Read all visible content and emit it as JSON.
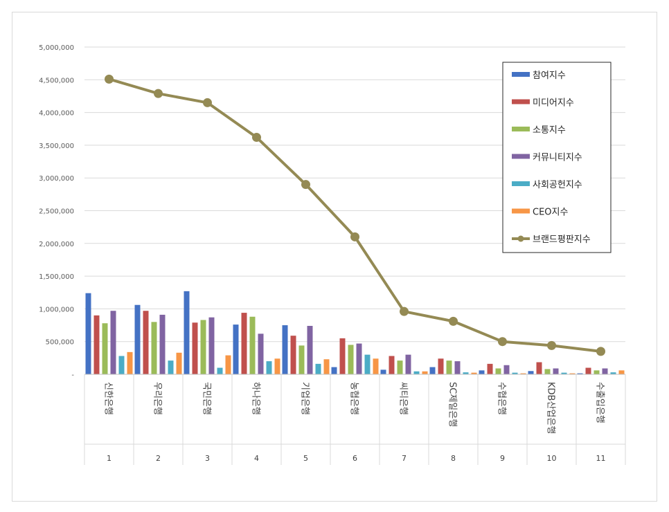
{
  "chart_data": {
    "type": "bar",
    "categories": [
      "신한은행",
      "우리은행",
      "국민은행",
      "하나은행",
      "기업은행",
      "농협은행",
      "씨티은행",
      "SC제일은행",
      "수협은행",
      "KDB산업은행",
      "수출입은행"
    ],
    "ranks": [
      "1",
      "2",
      "3",
      "4",
      "5",
      "6",
      "7",
      "8",
      "9",
      "10",
      "11"
    ],
    "ylim": [
      0,
      5000000
    ],
    "yticks": [
      0,
      500000,
      1000000,
      1500000,
      2000000,
      2500000,
      3000000,
      3500000,
      4000000,
      4500000,
      5000000
    ],
    "ytick_labels": [
      "-",
      "500,000",
      "1,000,000",
      "1,500,000",
      "2,000,000",
      "2,500,000",
      "3,000,000",
      "3,500,000",
      "4,000,000",
      "4,500,000",
      "5,000,000"
    ],
    "grid": true,
    "legend_position": "top-right",
    "series": [
      {
        "name": "참여지수",
        "kind": "bar",
        "color": "#4472C4",
        "values": [
          1240000,
          1060000,
          1270000,
          760000,
          750000,
          110000,
          70000,
          110000,
          60000,
          50000,
          15000
        ]
      },
      {
        "name": "미디어지수",
        "kind": "bar",
        "color": "#C0504D",
        "values": [
          900000,
          970000,
          790000,
          940000,
          590000,
          550000,
          280000,
          240000,
          160000,
          185000,
          100000
        ]
      },
      {
        "name": "소통지수",
        "kind": "bar",
        "color": "#9BBB59",
        "values": [
          780000,
          800000,
          830000,
          880000,
          440000,
          450000,
          210000,
          210000,
          90000,
          80000,
          60000
        ]
      },
      {
        "name": "커뮤니티지수",
        "kind": "bar",
        "color": "#8064A2",
        "values": [
          970000,
          910000,
          870000,
          620000,
          740000,
          470000,
          300000,
          200000,
          140000,
          90000,
          90000
        ]
      },
      {
        "name": "사회공헌지수",
        "kind": "bar",
        "color": "#4BACC6",
        "values": [
          280000,
          210000,
          100000,
          200000,
          160000,
          300000,
          45000,
          30000,
          25000,
          25000,
          30000
        ]
      },
      {
        "name": "CEO지수",
        "kind": "bar",
        "color": "#F79646",
        "values": [
          340000,
          330000,
          290000,
          240000,
          230000,
          240000,
          45000,
          25000,
          15000,
          15000,
          60000
        ]
      },
      {
        "name": "브랜드평판지수",
        "kind": "line",
        "color": "#948A54",
        "values": [
          4510000,
          4290000,
          4150000,
          3620000,
          2900000,
          2100000,
          960000,
          810000,
          500000,
          440000,
          350000
        ]
      }
    ]
  }
}
